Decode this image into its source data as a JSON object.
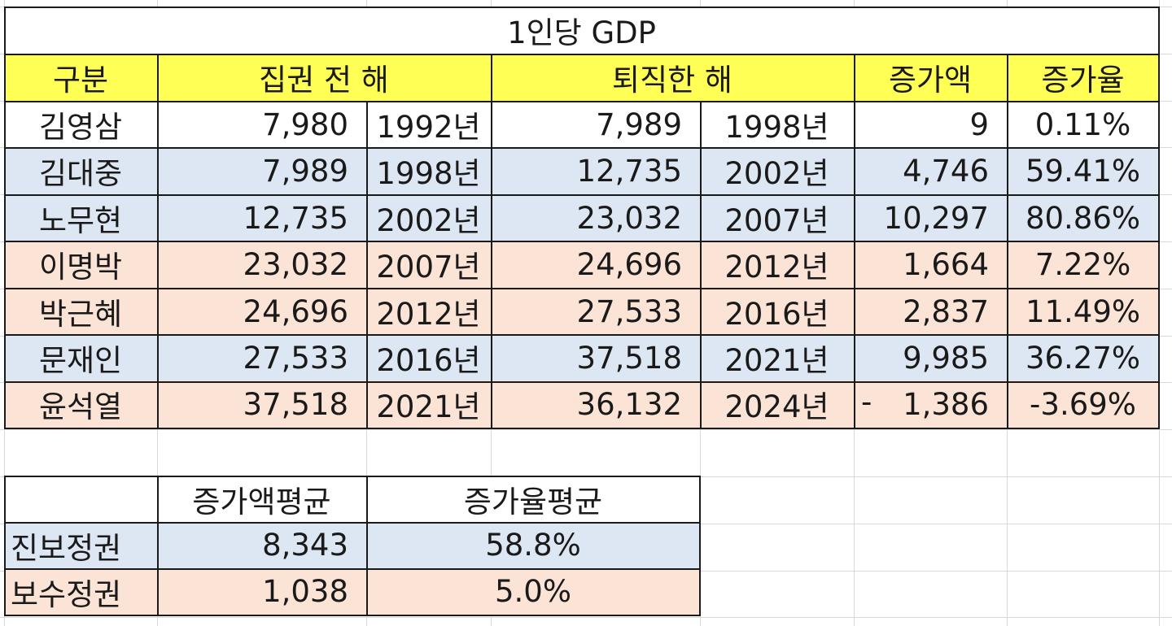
{
  "table": {
    "title": "1인당 GDP",
    "headers": [
      "구분",
      "집권 전 해",
      "퇴직한 해",
      "증가액",
      "증가율"
    ],
    "rows": [
      {
        "name": "김영삼",
        "before_gdp": "7,980",
        "before_year": "1992년",
        "after_gdp": "7,989",
        "after_year": "1998년",
        "increase": "9",
        "rate": "0.11%",
        "group": "white"
      },
      {
        "name": "김대중",
        "before_gdp": "7,989",
        "before_year": "1998년",
        "after_gdp": "12,735",
        "after_year": "2002년",
        "increase": "4,746",
        "rate": "59.41%",
        "group": "blue"
      },
      {
        "name": "노무현",
        "before_gdp": "12,735",
        "before_year": "2002년",
        "after_gdp": "23,032",
        "after_year": "2007년",
        "increase": "10,297",
        "rate": "80.86%",
        "group": "blue"
      },
      {
        "name": "이명박",
        "before_gdp": "23,032",
        "before_year": "2007년",
        "after_gdp": "24,696",
        "after_year": "2012년",
        "increase": "1,664",
        "rate": "7.22%",
        "group": "peach"
      },
      {
        "name": "박근혜",
        "before_gdp": "24,696",
        "before_year": "2012년",
        "after_gdp": "27,533",
        "after_year": "2016년",
        "increase": "2,837",
        "rate": "11.49%",
        "group": "peach"
      },
      {
        "name": "문재인",
        "before_gdp": "27,533",
        "before_year": "2016년",
        "after_gdp": "37,518",
        "after_year": "2021년",
        "increase": "9,985",
        "rate": "36.27%",
        "group": "blue"
      },
      {
        "name": "윤석열",
        "before_gdp": "37,518",
        "before_year": "2021년",
        "after_gdp": "36,132",
        "after_year": "2024년",
        "increase_sign": "-",
        "increase": "1,386",
        "rate": "-3.69%",
        "group": "peach"
      }
    ]
  },
  "summary": {
    "headers": [
      "증가액평균",
      "증가율평균"
    ],
    "rows": [
      {
        "name": "진보정권",
        "avg_increase": "8,343",
        "avg_rate": "58.8%",
        "group": "blue"
      },
      {
        "name": "보수정권",
        "avg_increase": "1,038",
        "avg_rate": "5.0%",
        "group": "peach"
      }
    ]
  },
  "colors": {
    "header": "#ffff55",
    "progressive": "#dde6f3",
    "conservative": "#fbe3d6",
    "gridline": "#d9d9d9"
  }
}
